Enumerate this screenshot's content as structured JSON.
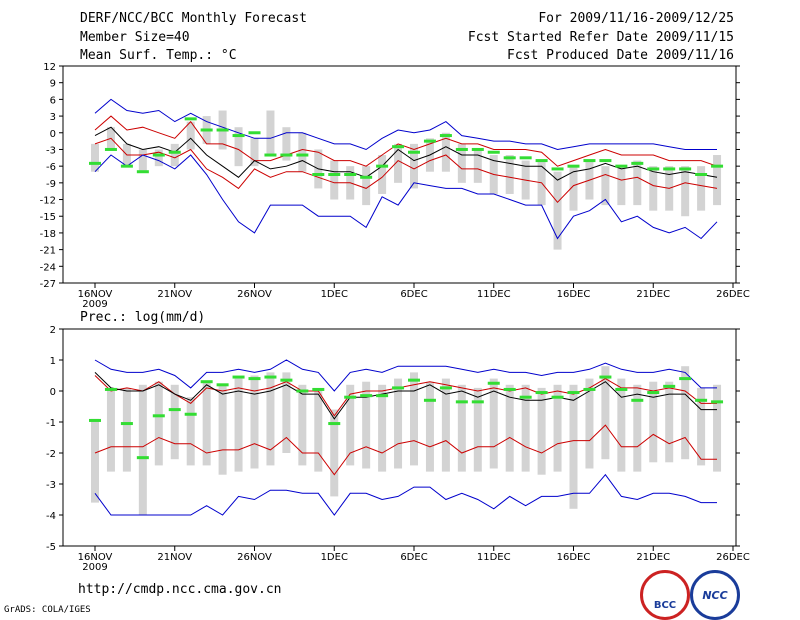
{
  "header": {
    "title": "DERF/NCC/BCC Monthly Forecast",
    "member_size": "Member Size=40",
    "variable": "Mean Surf. Temp.: °C",
    "for_range": "For 2009/11/16-2009/12/25",
    "start_date": "Fcst Started Refer Date 2009/11/15",
    "produced_date": "Fcst Produced Date 2009/11/16"
  },
  "footer": {
    "url": "http://cmdp.ncc.cma.gov.cn",
    "grads": "GrADS: COLA/IGES",
    "logo_left": "BCC",
    "logo_right": "NCC"
  },
  "colors": {
    "blue": "#0000cc",
    "red": "#cc0000",
    "black": "#000000",
    "green": "#33dd33",
    "box": "#d3d3d3"
  },
  "chart_data": [
    {
      "type": "line",
      "title": "Mean Surf. Temp.: °C",
      "x_ticks": [
        "16NOV",
        "21NOV",
        "26NOV",
        "1DEC",
        "6DEC",
        "11DEC",
        "16DEC",
        "21DEC",
        "26DEC"
      ],
      "x_year": "2009",
      "x_tick_days": [
        0,
        5,
        10,
        15,
        20,
        25,
        30,
        35,
        40
      ],
      "ylim": [
        -27,
        12
      ],
      "y_ticks": [
        12,
        9,
        6,
        3,
        0,
        -3,
        -6,
        -9,
        -12,
        -15,
        -18,
        -21,
        -24,
        -27
      ],
      "day": [
        0,
        1,
        2,
        3,
        4,
        5,
        6,
        7,
        8,
        9,
        10,
        11,
        12,
        13,
        14,
        15,
        16,
        17,
        18,
        19,
        20,
        21,
        22,
        23,
        24,
        25,
        26,
        27,
        28,
        29,
        30,
        31,
        32,
        33,
        34,
        35,
        36,
        37,
        38,
        39
      ],
      "series": [
        {
          "name": "max",
          "color": "blue",
          "values": [
            3.5,
            6,
            4,
            3.5,
            4,
            2,
            3.5,
            2,
            1,
            0,
            -1,
            -1,
            0,
            0,
            -1,
            -2,
            -2,
            -3,
            -1,
            0.5,
            0,
            0.5,
            2,
            -0.5,
            -1,
            -1.5,
            -1.5,
            -2,
            -2,
            -3,
            -2.5,
            -2,
            -2,
            -2,
            -2,
            -2,
            -2.5,
            -3,
            -3,
            -3
          ]
        },
        {
          "name": "upper",
          "color": "red",
          "values": [
            0.5,
            3,
            0.5,
            1,
            0,
            -1,
            2,
            -2,
            -2,
            -3,
            -5,
            -5,
            -4,
            -3,
            -3.5,
            -5,
            -5,
            -6,
            -4,
            -2,
            -3,
            -2,
            -1,
            -2,
            -2,
            -3,
            -3,
            -3,
            -3.5,
            -6,
            -5,
            -4,
            -3,
            -4,
            -4,
            -4,
            -5,
            -5,
            -5,
            -6
          ]
        },
        {
          "name": "mean",
          "color": "black",
          "values": [
            -0.5,
            1,
            -2,
            -3,
            -2.5,
            -3.5,
            -1,
            -4,
            -6,
            -8,
            -5,
            -6.5,
            -6,
            -5,
            -6.5,
            -7,
            -7,
            -8,
            -6,
            -3,
            -5,
            -4,
            -2.5,
            -4,
            -4,
            -5,
            -5.5,
            -6,
            -6,
            -8.5,
            -7,
            -6.5,
            -5.5,
            -6.5,
            -6,
            -7,
            -7.5,
            -7,
            -7.5,
            -8
          ]
        },
        {
          "name": "lower",
          "color": "red",
          "values": [
            -2,
            -1,
            -4,
            -4,
            -3.5,
            -4.5,
            -3,
            -6.5,
            -8,
            -10,
            -6.5,
            -8,
            -7,
            -7,
            -8,
            -9,
            -9,
            -10,
            -8,
            -5,
            -6.5,
            -5,
            -4,
            -6.5,
            -6.5,
            -7.5,
            -8,
            -8.5,
            -9,
            -12.5,
            -9.5,
            -8.5,
            -7.5,
            -8.5,
            -8,
            -9.5,
            -10,
            -9,
            -9.5,
            -10
          ]
        },
        {
          "name": "min",
          "color": "blue",
          "values": [
            -7,
            -4,
            -6,
            -4,
            -5,
            -6.5,
            -4,
            -7.5,
            -12,
            -16,
            -18,
            -13,
            -13,
            -13,
            -15,
            -15,
            -15,
            -17,
            -11.5,
            -13,
            -9,
            -9.5,
            -10,
            -10,
            -11,
            -11,
            -12,
            -13,
            -13,
            -19,
            -15,
            -14,
            -12,
            -16,
            -15,
            -17,
            -18,
            -17,
            -19,
            -16
          ]
        },
        {
          "name": "observed",
          "color": "green",
          "values": [
            -5.5,
            -3,
            -6,
            -7,
            -4,
            -3.5,
            2.5,
            0.5,
            0.5,
            -0.5,
            0,
            -4,
            -4,
            -4,
            -7.5,
            -7.5,
            -7.5,
            -8,
            -6,
            -2.5,
            -3.5,
            -1.5,
            -0.5,
            -3,
            -3,
            -3.5,
            -4.5,
            -4.5,
            -5,
            -6.5,
            -6,
            -5,
            -5,
            -6,
            -5.5,
            -6.5,
            -6.5,
            -6.5,
            -7.5,
            -6
          ]
        }
      ],
      "boxes": [
        [
          -7,
          -2
        ],
        [
          -3,
          1
        ],
        [
          -6,
          -2
        ],
        [
          -7,
          -3
        ],
        [
          -6,
          -3
        ],
        [
          -6,
          -2
        ],
        [
          -3,
          2
        ],
        [
          -2,
          3
        ],
        [
          -3,
          4
        ],
        [
          -6,
          1
        ],
        [
          -6,
          -1
        ],
        [
          -4,
          4
        ],
        [
          -5,
          1
        ],
        [
          -7,
          0
        ],
        [
          -10,
          -3
        ],
        [
          -12,
          -5
        ],
        [
          -12,
          -6
        ],
        [
          -13,
          -6
        ],
        [
          -11,
          -4
        ],
        [
          -9,
          -2
        ],
        [
          -10,
          -2
        ],
        [
          -7,
          -1
        ],
        [
          -7,
          0
        ],
        [
          -9,
          -2
        ],
        [
          -9,
          -3
        ],
        [
          -11,
          -4
        ],
        [
          -11,
          -4
        ],
        [
          -12,
          -5
        ],
        [
          -13,
          -5
        ],
        [
          -21,
          -7
        ],
        [
          -14,
          -6
        ],
        [
          -12,
          -5
        ],
        [
          -13,
          -6
        ],
        [
          -13,
          -6
        ],
        [
          -13,
          -5
        ],
        [
          -14,
          -6
        ],
        [
          -14,
          -6
        ],
        [
          -15,
          -6
        ],
        [
          -14,
          -6
        ],
        [
          -13,
          -4
        ]
      ]
    },
    {
      "type": "line",
      "title": "Prec.: log(mm/d)",
      "x_ticks": [
        "16NOV",
        "21NOV",
        "26NOV",
        "1DEC",
        "6DEC",
        "11DEC",
        "16DEC",
        "21DEC",
        "26DEC"
      ],
      "x_year": "2009",
      "x_tick_days": [
        0,
        5,
        10,
        15,
        20,
        25,
        30,
        35,
        40
      ],
      "ylim": [
        -5,
        2
      ],
      "y_ticks": [
        2,
        1,
        0,
        -1,
        -2,
        -3,
        -4,
        -5
      ],
      "day": [
        0,
        1,
        2,
        3,
        4,
        5,
        6,
        7,
        8,
        9,
        10,
        11,
        12,
        13,
        14,
        15,
        16,
        17,
        18,
        19,
        20,
        21,
        22,
        23,
        24,
        25,
        26,
        27,
        28,
        29,
        30,
        31,
        32,
        33,
        34,
        35,
        36,
        37,
        38,
        39
      ],
      "series": [
        {
          "name": "max",
          "color": "blue",
          "values": [
            1,
            0.7,
            0.6,
            0.6,
            0.7,
            0.5,
            0.1,
            0.6,
            0.6,
            0.7,
            0.6,
            0.7,
            1,
            0.7,
            0.6,
            0,
            0.6,
            0.7,
            0.6,
            0.8,
            0.8,
            0.8,
            0.8,
            0.7,
            0.6,
            0.7,
            0.6,
            0.6,
            0.5,
            0.6,
            0.6,
            0.7,
            0.9,
            0.7,
            0.6,
            0.6,
            0.7,
            0.6,
            0.1,
            0.1
          ]
        },
        {
          "name": "upper",
          "color": "red",
          "values": [
            0.5,
            0,
            0.1,
            0,
            0.3,
            -0.1,
            -0.4,
            0.1,
            0,
            0.1,
            0,
            0.1,
            0.3,
            0,
            0,
            -0.8,
            -0.1,
            0,
            0,
            0.1,
            0.2,
            0.3,
            0.2,
            0.1,
            0,
            0.1,
            0,
            0.1,
            -0.1,
            0,
            -0.1,
            0.1,
            0.4,
            0.1,
            0.1,
            0,
            0.1,
            0,
            -0.4,
            -0.4
          ]
        },
        {
          "name": "mean",
          "color": "black",
          "values": [
            0.6,
            0.1,
            0,
            0,
            0.2,
            -0.1,
            -0.3,
            0.2,
            -0.1,
            0,
            -0.1,
            0,
            0.2,
            -0.1,
            -0.1,
            -0.9,
            -0.2,
            -0.2,
            -0.1,
            0,
            0,
            0.2,
            -0.1,
            0,
            -0.2,
            0,
            -0.2,
            -0.3,
            -0.3,
            -0.2,
            -0.3,
            0,
            0.3,
            -0.2,
            -0.1,
            -0.2,
            -0.1,
            -0.1,
            -0.6,
            -0.6
          ]
        },
        {
          "name": "lower",
          "color": "red",
          "values": [
            -2,
            -1.8,
            -1.8,
            -1.8,
            -1.5,
            -1.7,
            -1.7,
            -2,
            -1.9,
            -1.9,
            -1.7,
            -1.9,
            -1.5,
            -2,
            -2,
            -2.7,
            -2,
            -1.8,
            -2,
            -1.7,
            -1.6,
            -1.8,
            -1.6,
            -2,
            -1.8,
            -1.8,
            -1.5,
            -1.8,
            -2,
            -1.7,
            -1.6,
            -1.6,
            -1.1,
            -1.8,
            -1.8,
            -1.4,
            -1.7,
            -1.5,
            -2.2,
            -2.2
          ]
        },
        {
          "name": "min",
          "color": "blue",
          "values": [
            -3.3,
            -4,
            -4,
            -4,
            -4,
            -4,
            -4,
            -3.7,
            -4,
            -3.4,
            -3.5,
            -3.2,
            -3.2,
            -3.3,
            -3.3,
            -4,
            -3.3,
            -3.3,
            -3.5,
            -3.4,
            -3.1,
            -3.1,
            -3.5,
            -3.3,
            -3.5,
            -3.8,
            -3.4,
            -3.7,
            -3.4,
            -3.4,
            -3.3,
            -3.3,
            -2.7,
            -3.4,
            -3.5,
            -3.3,
            -3.3,
            -3.4,
            -3.6,
            -3.6
          ]
        },
        {
          "name": "observed",
          "color": "green",
          "values": [
            -0.95,
            0.05,
            -1.05,
            -2.15,
            -0.8,
            -0.6,
            -0.75,
            0.3,
            0.2,
            0.45,
            0.4,
            0.45,
            0.35,
            0,
            0.05,
            -1.05,
            -0.2,
            -0.15,
            -0.15,
            0.1,
            0.35,
            -0.3,
            0.1,
            -0.35,
            -0.35,
            0.25,
            0.05,
            -0.2,
            -0.05,
            -0.2,
            -0.05,
            0.05,
            0.45,
            0.05,
            -0.3,
            -0.05,
            0.15,
            0.4,
            -0.3,
            -0.35
          ]
        }
      ],
      "boxes": [
        [
          -3.6,
          -0.9
        ],
        [
          -2.6,
          0.1
        ],
        [
          -2.6,
          0.1
        ],
        [
          -4,
          0.2
        ],
        [
          -2.4,
          0.3
        ],
        [
          -2.2,
          0.2
        ],
        [
          -2.4,
          -0.2
        ],
        [
          -2.4,
          0.3
        ],
        [
          -2.7,
          0.2
        ],
        [
          -2.6,
          0.4
        ],
        [
          -2.5,
          0.5
        ],
        [
          -2.4,
          0.6
        ],
        [
          -2,
          0.6
        ],
        [
          -2.4,
          0.2
        ],
        [
          -2.6,
          0
        ],
        [
          -3.4,
          -0.6
        ],
        [
          -2.4,
          0.2
        ],
        [
          -2.5,
          0.3
        ],
        [
          -2.6,
          0.2
        ],
        [
          -2.5,
          0.4
        ],
        [
          -2.4,
          0.6
        ],
        [
          -2.6,
          0.3
        ],
        [
          -2.6,
          0.4
        ],
        [
          -2.6,
          0.2
        ],
        [
          -2.6,
          0.1
        ],
        [
          -2.5,
          0.4
        ],
        [
          -2.6,
          0.2
        ],
        [
          -2.6,
          0.2
        ],
        [
          -2.7,
          0.1
        ],
        [
          -2.6,
          0.2
        ],
        [
          -3.8,
          0.2
        ],
        [
          -2.5,
          0.4
        ],
        [
          -2.2,
          0.8
        ],
        [
          -2.6,
          0.4
        ],
        [
          -2.6,
          0.2
        ],
        [
          -2.3,
          0.3
        ],
        [
          -2.3,
          0.3
        ],
        [
          -2.2,
          0.8
        ],
        [
          -2.4,
          0.1
        ],
        [
          -2.6,
          0.2
        ]
      ]
    }
  ]
}
